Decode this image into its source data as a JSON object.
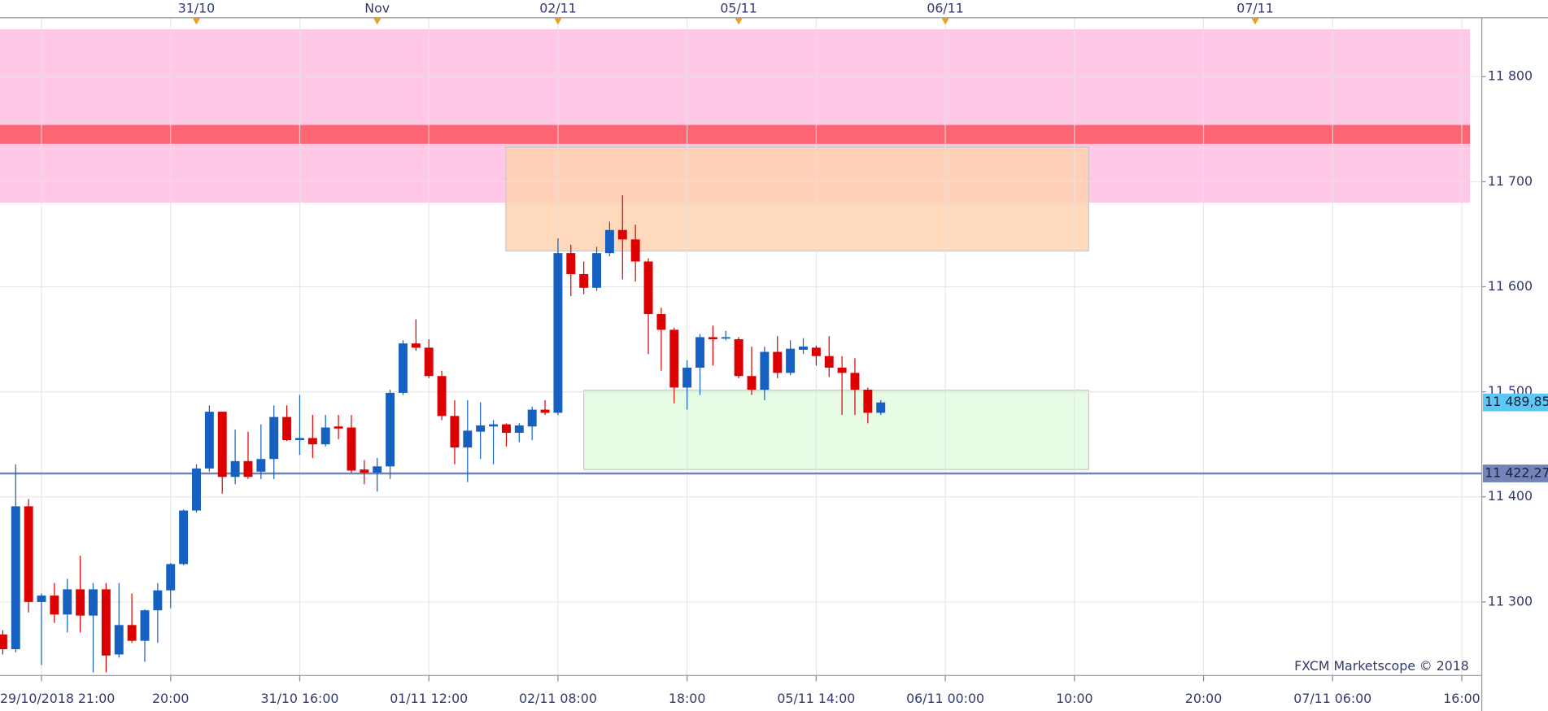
{
  "chart_data": {
    "type": "candlestick",
    "watermark": "FXCM Marketscope © 2018",
    "categories": [
      null,
      null,
      null,
      "29/10/2018 21:00",
      null,
      null,
      null,
      null,
      null,
      null,
      null,
      null,
      null,
      "20:00",
      null,
      null,
      null,
      null,
      null,
      null,
      null,
      null,
      null,
      "31/10 16:00",
      null,
      null,
      null,
      null,
      null,
      null,
      null,
      null,
      null,
      "01/11 12:00",
      null,
      null,
      null,
      null,
      null,
      null,
      null,
      null,
      null,
      "02/11 08:00",
      null,
      null,
      null,
      null,
      null,
      null,
      null,
      null,
      null,
      "18:00",
      null,
      null,
      null,
      null,
      null,
      null,
      null,
      null,
      null,
      "05/11 14:00",
      null,
      null,
      null,
      null,
      null,
      null,
      null,
      null,
      null,
      "06/11 00:00",
      null,
      null,
      null,
      null,
      null,
      null,
      null,
      null,
      null,
      "10:00",
      null,
      null,
      null,
      null,
      null,
      null,
      null,
      null,
      null,
      "20:00",
      null,
      null,
      null,
      null,
      null,
      null,
      null,
      null,
      null,
      "07/11 06:00",
      null,
      null,
      null,
      null,
      null,
      null,
      null,
      null,
      null,
      "16:00"
    ],
    "day_markers": [
      null,
      null,
      null,
      null,
      null,
      null,
      null,
      null,
      null,
      null,
      null,
      null,
      null,
      null,
      null,
      "31/10",
      null,
      null,
      null,
      null,
      null,
      null,
      null,
      null,
      null,
      null,
      null,
      null,
      null,
      "Nov",
      null,
      null,
      null,
      null,
      null,
      null,
      null,
      null,
      null,
      null,
      null,
      null,
      null,
      "02/11",
      null,
      null,
      null,
      null,
      null,
      null,
      null,
      null,
      null,
      null,
      null,
      null,
      null,
      "05/11",
      null,
      null,
      null,
      null,
      null,
      null,
      null,
      null,
      null,
      null,
      null,
      null,
      null,
      null,
      null,
      "06/11",
      null,
      null,
      null,
      null,
      null,
      null,
      null,
      null,
      null,
      null,
      null,
      null,
      null,
      null,
      null,
      null,
      null,
      null,
      null,
      null,
      null,
      null,
      null,
      "07/11",
      null,
      null,
      null,
      null,
      null,
      null,
      null,
      null,
      null,
      null,
      null,
      null,
      null,
      null,
      null,
      null
    ],
    "ohlc": {
      "open": [
        11269,
        11255,
        11391,
        11300,
        11306,
        11288,
        11312,
        11287,
        11312,
        11250,
        11278,
        11263,
        11292,
        11311,
        11336,
        11387,
        11427,
        11481,
        11419,
        11434,
        11424,
        11436,
        11476,
        11454,
        11456,
        11450,
        11467,
        11466,
        11426,
        11423,
        11429,
        11499,
        11546,
        11542,
        11515,
        11477,
        11447,
        11462,
        11467,
        11469,
        11461,
        11467,
        11483,
        11480,
        11632,
        11612,
        11599,
        11632,
        11654,
        11645,
        11624,
        11574,
        11559,
        11504,
        11523,
        11552,
        11551,
        11550,
        11515,
        11502,
        11538,
        11518,
        11540,
        11542,
        11534,
        11523,
        11518,
        11502,
        11480,
        null,
        null,
        null,
        null,
        null,
        null,
        null,
        null,
        null,
        null,
        null,
        null,
        null,
        null,
        null,
        null,
        null,
        null,
        null,
        null,
        null,
        null,
        null,
        null,
        null,
        null,
        null,
        null,
        null,
        null,
        null,
        null,
        null,
        null,
        null,
        null,
        null,
        null,
        null,
        null
      ],
      "high": [
        11273,
        11431,
        11398,
        11308,
        11318,
        11322,
        11344,
        11318,
        11318,
        11318,
        11308,
        11293,
        11318,
        11337,
        11388,
        11431,
        11487,
        11481,
        11464,
        11462,
        11469,
        11487,
        11487,
        11497,
        11478,
        11478,
        11478,
        11478,
        11435,
        11437,
        11502,
        11549,
        11569,
        11550,
        11520,
        11492,
        11492,
        11490,
        11473,
        11470,
        11470,
        11486,
        11492,
        11646,
        11640,
        11624,
        11638,
        11662,
        11687,
        11659,
        11627,
        11580,
        11561,
        11530,
        11555,
        11563,
        11558,
        11552,
        11543,
        11543,
        11553,
        11549,
        11551,
        11544,
        11553,
        11534,
        11532,
        11504,
        11492,
        null,
        null,
        null,
        null,
        null,
        null,
        null,
        null,
        null,
        null,
        null,
        null,
        null,
        null,
        null,
        null,
        null,
        null,
        null,
        null,
        null,
        null,
        null,
        null,
        null,
        null,
        null,
        null,
        null,
        null,
        null,
        null,
        null,
        null,
        null,
        null,
        null,
        null,
        null,
        null
      ],
      "low": [
        11250,
        11252,
        11290,
        11240,
        11280,
        11271,
        11271,
        11233,
        11233,
        11247,
        11261,
        11243,
        11261,
        11294,
        11335,
        11385,
        11424,
        11403,
        11412,
        11417,
        11417,
        11417,
        11453,
        11440,
        11437,
        11448,
        11455,
        11423,
        11412,
        11405,
        11417,
        11497,
        11539,
        11513,
        11473,
        11431,
        11414,
        11436,
        11431,
        11448,
        11452,
        11454,
        11478,
        11478,
        11591,
        11593,
        11596,
        11629,
        11607,
        11605,
        11536,
        11520,
        11489,
        11483,
        11497,
        11525,
        11549,
        11513,
        11497,
        11492,
        11513,
        11516,
        11536,
        11525,
        11514,
        11478,
        11478,
        11470,
        11478,
        null,
        null,
        null,
        null,
        null,
        null,
        null,
        null,
        null,
        null,
        null,
        null,
        null,
        null,
        null,
        null,
        null,
        null,
        null,
        null,
        null,
        null,
        null,
        null,
        null,
        null,
        null,
        null,
        null,
        null,
        null,
        null,
        null,
        null,
        null,
        null,
        null,
        null,
        null,
        null
      ],
      "close": [
        11255,
        11391,
        11300,
        11306,
        11288,
        11312,
        11287,
        11312,
        11249,
        11278,
        11263,
        11292,
        11311,
        11336,
        11387,
        11427,
        11481,
        11419,
        11434,
        11419,
        11436,
        11476,
        11454,
        11456,
        11450,
        11466,
        11465,
        11425,
        11423,
        11429,
        11499,
        11546,
        11542,
        11515,
        11477,
        11447,
        11463,
        11468,
        11469,
        11461,
        11468,
        11483,
        11480,
        11632,
        11612,
        11599,
        11632,
        11654,
        11645,
        11624,
        11574,
        11559,
        11504,
        11523,
        11552,
        11550,
        11552,
        11515,
        11502,
        11538,
        11518,
        11541,
        11543,
        11534,
        11523,
        11518,
        11502,
        11480,
        11489.85,
        null,
        null,
        null,
        null,
        null,
        null,
        null,
        null,
        null,
        null,
        null,
        null,
        null,
        null,
        null,
        null,
        null,
        null,
        null,
        null,
        null,
        null,
        null,
        null,
        null,
        null,
        null,
        null,
        null,
        null,
        null,
        null,
        null,
        null,
        null,
        null,
        null,
        null,
        null,
        null
      ]
    },
    "colors": {
      "up": "#1560c0",
      "down": "#dd0000"
    },
    "ylim": [
      11230,
      11856
    ],
    "yticks": [
      {
        "value": 11300,
        "label": "11 300"
      },
      {
        "value": 11400,
        "label": "11 400"
      },
      {
        "value": 11500,
        "label": "11 500"
      },
      {
        "value": 11600,
        "label": "11 600"
      },
      {
        "value": 11700,
        "label": "11 700"
      },
      {
        "value": 11800,
        "label": "11 800"
      }
    ],
    "grid": true,
    "zones": [
      {
        "color": "#ffc8e6",
        "range": [
          11680,
          11845
        ]
      },
      {
        "color": "#ff6674",
        "range": [
          11736,
          11754
        ]
      },
      {
        "color": "#ffd2b0",
        "range": [
          11634,
          11733
        ]
      },
      {
        "color": "#e2fbe0",
        "range": [
          11426,
          11501.5
        ]
      }
    ],
    "price_line": {
      "value": 11422.27,
      "label": "11 422,27",
      "color": "#7484b8"
    },
    "current_price": {
      "value": 11489.85,
      "label": "11 489,85",
      "color": "#5cc8f4"
    }
  }
}
